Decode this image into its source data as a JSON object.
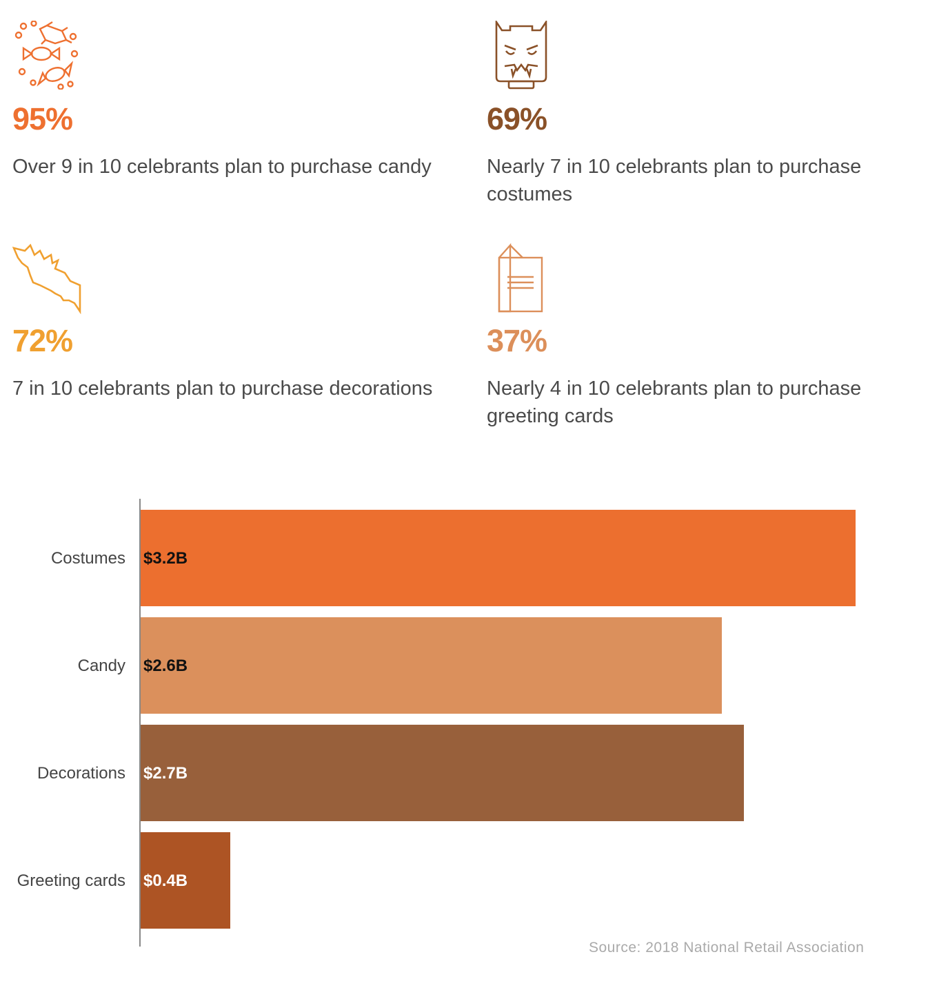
{
  "stats": [
    {
      "percent": "95%",
      "text": "Over 9 in 10 celebrants plan to purchase candy",
      "icon": "candy-icon",
      "color": "#ee7030"
    },
    {
      "percent": "69%",
      "text": "Nearly 7 in 10 celebrants plan to purchase costumes",
      "icon": "monster-mask-icon",
      "color": "#8a5128"
    },
    {
      "percent": "72%",
      "text": "7 in 10 celebrants plan to purchase decorations",
      "icon": "bat-icon",
      "color": "#f0a030"
    },
    {
      "percent": "37%",
      "text": "Nearly 4 in 10 celebrants plan to purchase greeting cards",
      "icon": "greeting-card-icon",
      "color": "#dc8f5a"
    }
  ],
  "chart_data": {
    "type": "bar",
    "orientation": "horizontal",
    "categories": [
      "Costumes",
      "Candy",
      "Decorations",
      "Greeting cards"
    ],
    "values": [
      3.2,
      2.6,
      2.7,
      0.4
    ],
    "value_labels": [
      "$3.2B",
      "$2.6B",
      "$2.7B",
      "$0.4B"
    ],
    "colors": [
      "#ec6f2f",
      "#db905c",
      "#98603b",
      "#ad5424"
    ],
    "label_colors": [
      "#111111",
      "#111111",
      "#ffffff",
      "#ffffff"
    ],
    "unit": "billion USD",
    "xlim": [
      0,
      3.2
    ]
  },
  "source": "Source: 2018 National Retail Association"
}
